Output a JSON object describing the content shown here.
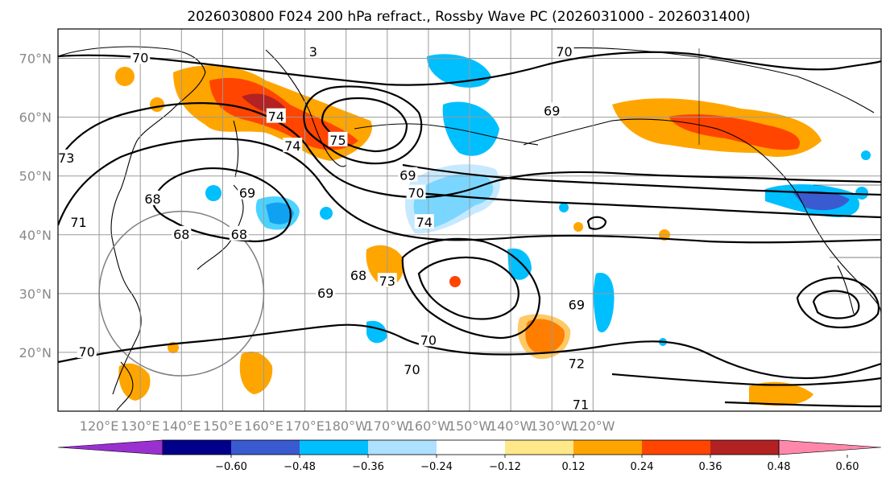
{
  "title": "2026030800 F024 200 hPa refract., Rossby Wave PC (2026031000 - 2026031400)",
  "map": {
    "lon_range": [
      110,
      310
    ],
    "lat_range": [
      10,
      75
    ],
    "lat_ticks": [
      {
        "value": 20,
        "label": "20°N"
      },
      {
        "value": 30,
        "label": "30°N"
      },
      {
        "value": 40,
        "label": "40°N"
      },
      {
        "value": 50,
        "label": "50°N"
      },
      {
        "value": 60,
        "label": "60°N"
      },
      {
        "value": 70,
        "label": "70°N"
      }
    ],
    "lon_ticks": [
      {
        "value": 120,
        "label": "120°E"
      },
      {
        "value": 130,
        "label": "130°E"
      },
      {
        "value": 140,
        "label": "140°E"
      },
      {
        "value": 150,
        "label": "150°E"
      },
      {
        "value": 160,
        "label": "160°E"
      },
      {
        "value": 170,
        "label": "170°E"
      },
      {
        "value": 180,
        "label": "180°W"
      },
      {
        "value": 190,
        "label": "170°W"
      },
      {
        "value": 200,
        "label": "160°W"
      },
      {
        "value": 210,
        "label": "150°W"
      },
      {
        "value": 220,
        "label": "140°W"
      },
      {
        "value": 230,
        "label": "130°W"
      },
      {
        "value": 240,
        "label": "120°W"
      }
    ],
    "circle": {
      "center_lon": 140,
      "center_lat": 30,
      "radius_deg": 20
    },
    "contour_labels": [
      {
        "text": "70",
        "lon": 130,
        "lat": 70
      },
      {
        "text": "73",
        "lon": 112,
        "lat": 53
      },
      {
        "text": "71",
        "lon": 115,
        "lat": 42
      },
      {
        "text": "68",
        "lon": 133,
        "lat": 46
      },
      {
        "text": "69",
        "lon": 156,
        "lat": 47
      },
      {
        "text": "68",
        "lon": 154,
        "lat": 40
      },
      {
        "text": "68",
        "lon": 140,
        "lat": 40
      },
      {
        "text": "74",
        "lon": 163,
        "lat": 60
      },
      {
        "text": "74",
        "lon": 167,
        "lat": 55
      },
      {
        "text": "75",
        "lon": 178,
        "lat": 56
      },
      {
        "text": "69",
        "lon": 195,
        "lat": 50
      },
      {
        "text": "70",
        "lon": 197,
        "lat": 47
      },
      {
        "text": "74",
        "lon": 199,
        "lat": 42
      },
      {
        "text": "69",
        "lon": 230,
        "lat": 61
      },
      {
        "text": "70",
        "lon": 233,
        "lat": 71
      },
      {
        "text": "3",
        "lon": 172,
        "lat": 71
      },
      {
        "text": "68",
        "lon": 183,
        "lat": 33
      },
      {
        "text": "69",
        "lon": 175,
        "lat": 30
      },
      {
        "text": "73",
        "lon": 190,
        "lat": 32
      },
      {
        "text": "70",
        "lon": 200,
        "lat": 22
      },
      {
        "text": "70",
        "lon": 196,
        "lat": 17
      },
      {
        "text": "70",
        "lon": 117,
        "lat": 20
      },
      {
        "text": "72",
        "lon": 236,
        "lat": 18
      },
      {
        "text": "71",
        "lon": 237,
        "lat": 11
      },
      {
        "text": "69",
        "lon": 236,
        "lat": 28
      }
    ]
  },
  "colorbar": {
    "min_color": "#9b30d0",
    "max_color": "#ff88aa",
    "colors": [
      "#00008b",
      "#3a5bcf",
      "#00bfff",
      "#aee0ff",
      "#ffffff",
      "#ffe88a",
      "#ffa500",
      "#ff4500",
      "#b22222"
    ],
    "ticks": [
      "−0.60",
      "−0.48",
      "−0.36",
      "−0.24",
      "−0.12",
      "0.12",
      "0.24",
      "0.36",
      "0.48",
      "0.60"
    ]
  },
  "fill_colors": {
    "light_yellow": "#ffe88a",
    "orange": "#ffa500",
    "red_orange": "#ff4500",
    "dark_red": "#b22222",
    "light_blue": "#aee0ff",
    "blue": "#00bfff",
    "mid_blue": "#3a5bcf"
  }
}
